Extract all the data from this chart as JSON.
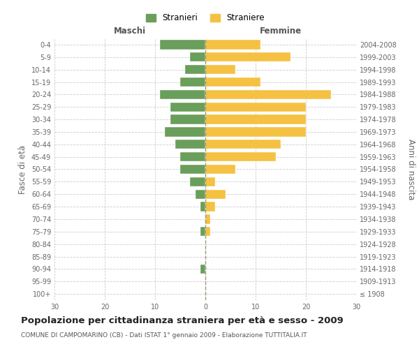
{
  "age_groups": [
    "100+",
    "95-99",
    "90-94",
    "85-89",
    "80-84",
    "75-79",
    "70-74",
    "65-69",
    "60-64",
    "55-59",
    "50-54",
    "45-49",
    "40-44",
    "35-39",
    "30-34",
    "25-29",
    "20-24",
    "15-19",
    "10-14",
    "5-9",
    "0-4"
  ],
  "birth_years": [
    "≤ 1908",
    "1909-1913",
    "1914-1918",
    "1919-1923",
    "1924-1928",
    "1929-1933",
    "1934-1938",
    "1939-1943",
    "1944-1948",
    "1949-1953",
    "1954-1958",
    "1959-1963",
    "1964-1968",
    "1969-1973",
    "1974-1978",
    "1979-1983",
    "1984-1988",
    "1989-1993",
    "1994-1998",
    "1999-2003",
    "2004-2008"
  ],
  "maschi": [
    0,
    0,
    1,
    0,
    0,
    1,
    0,
    1,
    2,
    3,
    5,
    5,
    6,
    8,
    7,
    7,
    9,
    5,
    4,
    3,
    9
  ],
  "femmine": [
    0,
    0,
    0,
    0,
    0,
    1,
    1,
    2,
    4,
    2,
    6,
    14,
    15,
    20,
    20,
    20,
    25,
    11,
    6,
    17,
    11
  ],
  "male_color": "#6a9e5b",
  "female_color": "#f5c142",
  "title": "Popolazione per cittadinanza straniera per età e sesso - 2009",
  "subtitle": "COMUNE DI CAMPOMARINO (CB) - Dati ISTAT 1° gennaio 2009 - Elaborazione TUTTITALIA.IT",
  "xlabel_left": "Maschi",
  "xlabel_right": "Femmine",
  "ylabel_left": "Fasce di età",
  "ylabel_right": "Anni di nascita",
  "legend_male": "Stranieri",
  "legend_female": "Straniere",
  "xlim": 30,
  "background_color": "#ffffff",
  "grid_color": "#cccccc",
  "title_fontsize": 9.5,
  "subtitle_fontsize": 6.5,
  "tick_fontsize": 7,
  "label_fontsize": 8.5,
  "header_fontsize": 8.5
}
